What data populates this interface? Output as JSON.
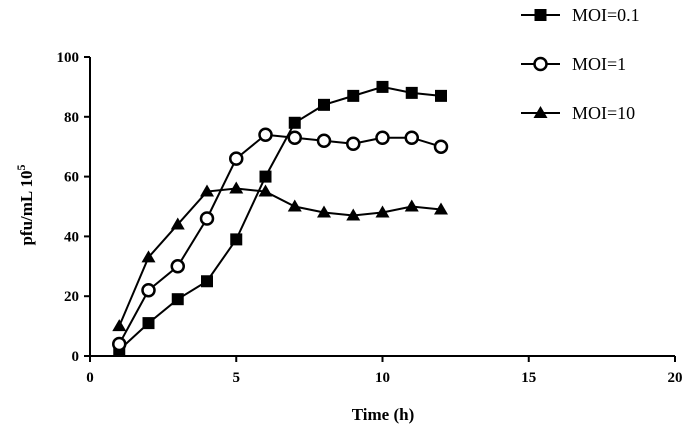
{
  "chart_data": {
    "type": "line",
    "xlabel": "Time (h)",
    "ylabel_main": "pfu/mL 10",
    "ylabel_sup": "5",
    "xlim": [
      0,
      20
    ],
    "ylim": [
      0,
      100
    ],
    "xticks": [
      0,
      5,
      10,
      15,
      20
    ],
    "yticks": [
      0,
      20,
      40,
      60,
      80,
      100
    ],
    "grid": false,
    "legend_position": "top-right",
    "x": [
      1,
      2,
      3,
      4,
      5,
      6,
      7,
      8,
      9,
      10,
      11,
      12
    ],
    "series": [
      {
        "name": "MOI=0.1",
        "marker": "square",
        "color": "#000000",
        "values": [
          2,
          11,
          19,
          25,
          39,
          60,
          78,
          84,
          87,
          90,
          88,
          87
        ]
      },
      {
        "name": "MOI=1",
        "marker": "circle-open",
        "color": "#000000",
        "values": [
          4,
          22,
          30,
          46,
          66,
          74,
          73,
          72,
          71,
          73,
          73,
          70
        ]
      },
      {
        "name": "MOI=10",
        "marker": "triangle",
        "color": "#000000",
        "values": [
          10,
          33,
          44,
          55,
          56,
          55,
          50,
          48,
          47,
          48,
          50,
          49
        ]
      }
    ]
  }
}
